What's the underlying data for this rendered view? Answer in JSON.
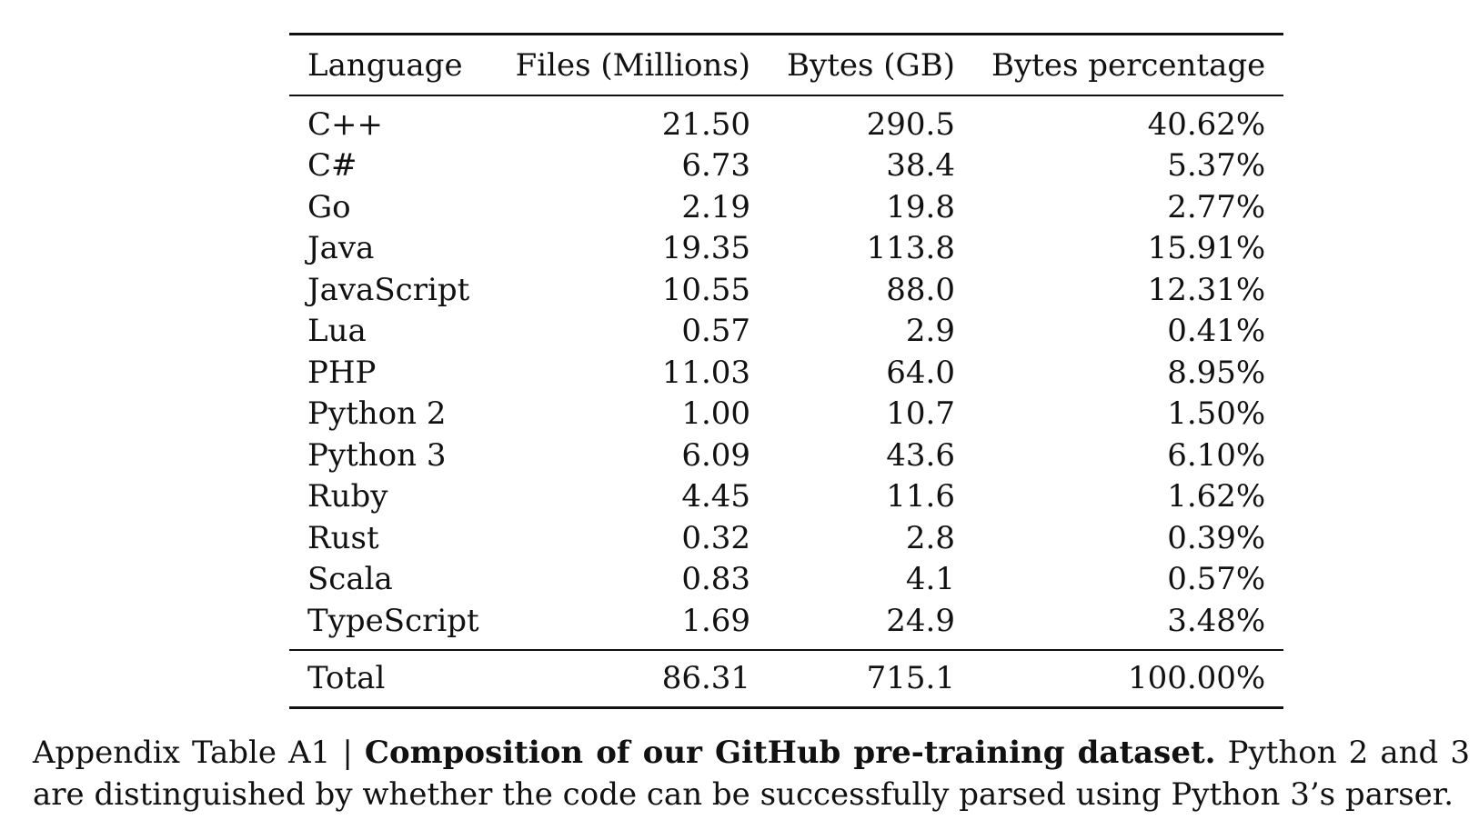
{
  "table": {
    "headers": [
      "Language",
      "Files (Millions)",
      "Bytes (GB)",
      "Bytes percentage"
    ],
    "rows": [
      [
        "C++",
        "21.50",
        "290.5",
        "40.62%"
      ],
      [
        "C#",
        "6.73",
        "38.4",
        "5.37%"
      ],
      [
        "Go",
        "2.19",
        "19.8",
        "2.77%"
      ],
      [
        "Java",
        "19.35",
        "113.8",
        "15.91%"
      ],
      [
        "JavaScript",
        "10.55",
        "88.0",
        "12.31%"
      ],
      [
        "Lua",
        "0.57",
        "2.9",
        "0.41%"
      ],
      [
        "PHP",
        "11.03",
        "64.0",
        "8.95%"
      ],
      [
        "Python 2",
        "1.00",
        "10.7",
        "1.50%"
      ],
      [
        "Python 3",
        "6.09",
        "43.6",
        "6.10%"
      ],
      [
        "Ruby",
        "4.45",
        "11.6",
        "1.62%"
      ],
      [
        "Rust",
        "0.32",
        "2.8",
        "0.39%"
      ],
      [
        "Scala",
        "0.83",
        "4.1",
        "0.57%"
      ],
      [
        "TypeScript",
        "1.69",
        "24.9",
        "3.48%"
      ]
    ],
    "total": [
      "Total",
      "86.31",
      "715.1",
      "100.00%"
    ]
  },
  "caption": {
    "label": "Appendix Table A1 | ",
    "bold": "Composition of our GitHub pre-training dataset.",
    "text": " Python 2 and 3 are distinguished by whether the code can be successfully parsed using Python 3’s parser."
  }
}
